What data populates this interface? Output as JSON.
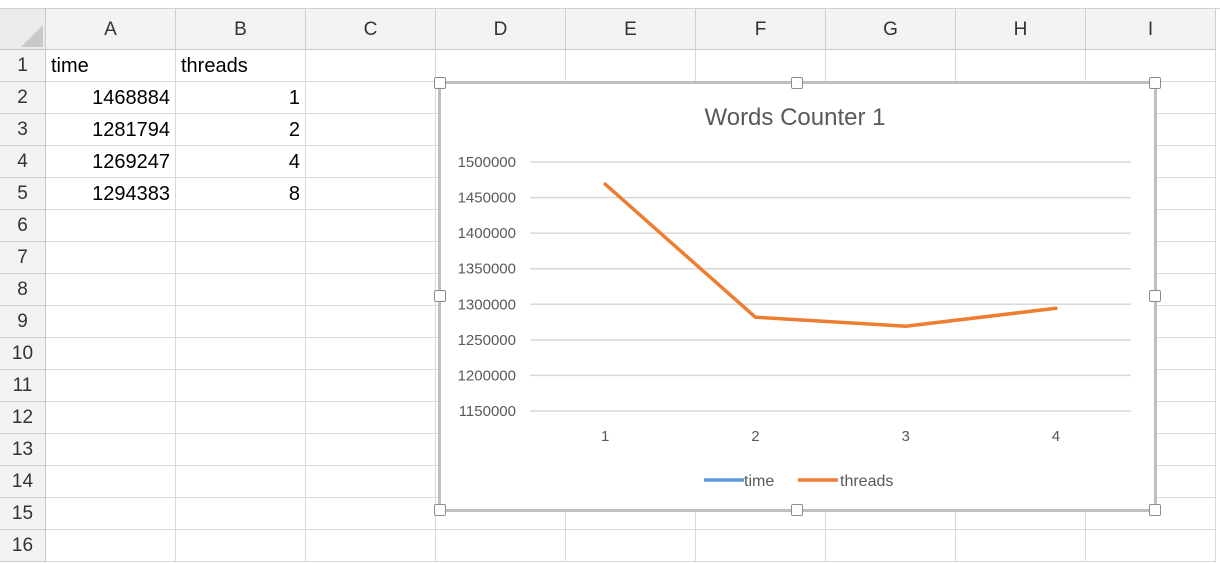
{
  "columns": [
    "A",
    "B",
    "C",
    "D",
    "E",
    "F",
    "G",
    "H",
    "I"
  ],
  "rows": [
    "1",
    "2",
    "3",
    "4",
    "5",
    "6",
    "7",
    "8",
    "9",
    "10",
    "11",
    "12",
    "13",
    "14",
    "15",
    "16"
  ],
  "cells": [
    {
      "ref": "A1",
      "text": "time",
      "align": "left"
    },
    {
      "ref": "B1",
      "text": "threads",
      "align": "left"
    },
    {
      "ref": "A2",
      "text": "1468884",
      "align": "right"
    },
    {
      "ref": "B2",
      "text": "1",
      "align": "right"
    },
    {
      "ref": "A3",
      "text": "1281794",
      "align": "right"
    },
    {
      "ref": "B3",
      "text": "2",
      "align": "right"
    },
    {
      "ref": "A4",
      "text": "1269247",
      "align": "right"
    },
    {
      "ref": "B4",
      "text": "4",
      "align": "right"
    },
    {
      "ref": "A5",
      "text": "1294383",
      "align": "right"
    },
    {
      "ref": "B5",
      "text": "8",
      "align": "right"
    }
  ],
  "chart_data": {
    "type": "line",
    "title": "Words Counter 1",
    "categories": [
      "1",
      "2",
      "3",
      "4"
    ],
    "series": [
      {
        "name": "time",
        "values": [
          1468884,
          1281794,
          1269247,
          1294383
        ],
        "color": "#5b9bd5",
        "visible": false
      },
      {
        "name": "threads",
        "values": [
          1468884,
          1281794,
          1269247,
          1294383
        ],
        "color": "#ed7d31"
      }
    ],
    "yticks": [
      "1500000",
      "1450000",
      "1400000",
      "1350000",
      "1300000",
      "1250000",
      "1200000",
      "1150000"
    ],
    "ylim": [
      1150000,
      1500000
    ],
    "grid": true,
    "legend": "bottom"
  }
}
